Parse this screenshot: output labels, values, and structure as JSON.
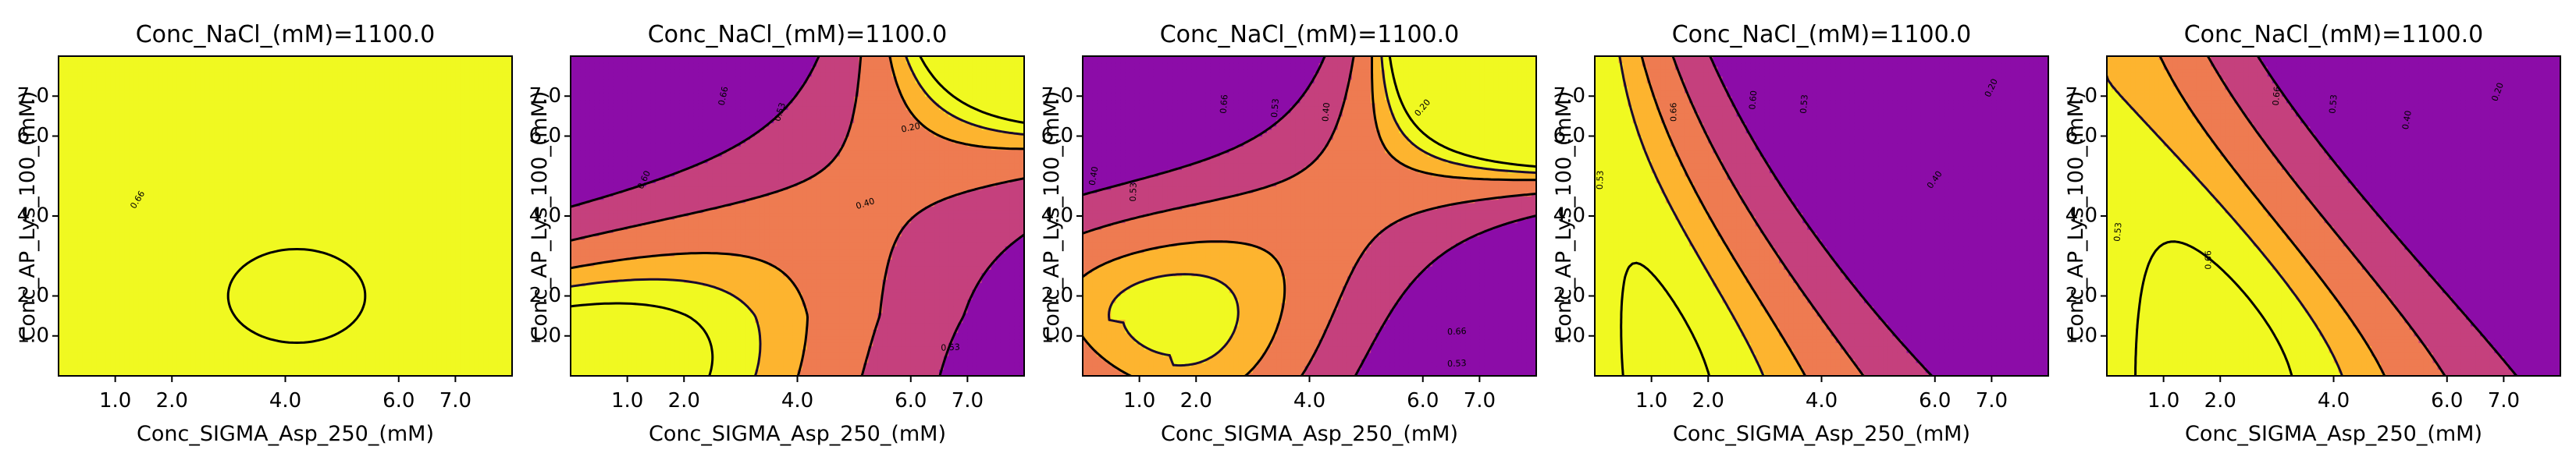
{
  "colors": {
    "level_fills": [
      "#8c0ca8",
      "#c5407d",
      "#ee7b51",
      "#fdb42f",
      "#f0f921"
    ],
    "contour_line": "#000000",
    "dashed_contour": "#1a0a2e"
  },
  "chart_data": [
    {
      "type": "contour",
      "title": "Conc_NaCl_(mM)=1100.0",
      "xlabel": "Conc_SIGMA_Asp_250_(mM)",
      "ylabel": "Conc_AP_Lys_100_(mM)",
      "xlim": [
        0.0,
        8.0
      ],
      "ylim": [
        0.0,
        8.0
      ],
      "xticks": [
        "1.0",
        "2.0",
        "4.0",
        "6.0",
        "7.0"
      ],
      "yticks": [
        "1.0",
        "2.0",
        "4.0",
        "6.0",
        "7.0"
      ],
      "levels": [
        0.2,
        0.4,
        0.53,
        0.6,
        0.66
      ],
      "contour_labels": [
        {
          "text": "0.66",
          "x": 1.4,
          "y": 4.4,
          "rot": -58
        }
      ]
    },
    {
      "type": "contour",
      "title": "Conc_NaCl_(mM)=1100.0",
      "xlabel": "Conc_SIGMA_Asp_250_(mM)",
      "ylabel": "Conc_AP_Lys_100_(mM)",
      "xlim": [
        0.0,
        8.0
      ],
      "ylim": [
        0.0,
        8.0
      ],
      "xticks": [
        "1.0",
        "2.0",
        "4.0",
        "6.0",
        "7.0"
      ],
      "yticks": [
        "1.0",
        "2.0",
        "4.0",
        "6.0",
        "7.0"
      ],
      "levels": [
        0.2,
        0.4,
        0.53,
        0.6,
        0.66
      ],
      "contour_labels": [
        {
          "text": "0.20",
          "x": 6.0,
          "y": 6.2,
          "rot": -12
        },
        {
          "text": "0.40",
          "x": 5.2,
          "y": 4.3,
          "rot": -18
        },
        {
          "text": "0.53",
          "x": 3.7,
          "y": 6.6,
          "rot": -72
        },
        {
          "text": "0.66",
          "x": 2.7,
          "y": 7.0,
          "rot": -78
        },
        {
          "text": "0.60",
          "x": 1.3,
          "y": 4.9,
          "rot": -65
        },
        {
          "text": "0.53",
          "x": 6.7,
          "y": 0.7,
          "rot": -3
        }
      ]
    },
    {
      "type": "contour",
      "title": "Conc_NaCl_(mM)=1100.0",
      "xlabel": "Conc_SIGMA_Asp_250_(mM)",
      "ylabel": "Conc_AP_Lys_100_(mM)",
      "xlim": [
        0.0,
        8.0
      ],
      "ylim": [
        0.0,
        8.0
      ],
      "xticks": [
        "1.0",
        "2.0",
        "4.0",
        "6.0",
        "7.0"
      ],
      "yticks": [
        "1.0",
        "2.0",
        "4.0",
        "6.0",
        "7.0"
      ],
      "levels": [
        0.2,
        0.4,
        0.53,
        0.6,
        0.66
      ],
      "contour_labels": [
        {
          "text": "0.20",
          "x": 6.0,
          "y": 6.7,
          "rot": -50
        },
        {
          "text": "0.40",
          "x": 0.2,
          "y": 5.0,
          "rot": -80
        },
        {
          "text": "0.53",
          "x": 0.9,
          "y": 4.6,
          "rot": -88
        },
        {
          "text": "0.66",
          "x": 2.5,
          "y": 6.8,
          "rot": -85
        },
        {
          "text": "0.53",
          "x": 3.4,
          "y": 6.7,
          "rot": -85
        },
        {
          "text": "0.40",
          "x": 4.3,
          "y": 6.6,
          "rot": -85
        },
        {
          "text": "0.66",
          "x": 6.6,
          "y": 1.1,
          "rot": -3
        },
        {
          "text": "0.53",
          "x": 6.6,
          "y": 0.3,
          "rot": -3
        }
      ]
    },
    {
      "type": "contour",
      "title": "Conc_NaCl_(mM)=1100.0",
      "xlabel": "Conc_SIGMA_Asp_250_(mM)",
      "ylabel": "Conc_AP_Lys_100_(mM)",
      "xlim": [
        0.0,
        8.0
      ],
      "ylim": [
        0.0,
        8.0
      ],
      "xticks": [
        "1.0",
        "2.0",
        "4.0",
        "6.0",
        "7.0"
      ],
      "yticks": [
        "1.0",
        "2.0",
        "4.0",
        "6.0",
        "7.0"
      ],
      "levels": [
        0.2,
        0.4,
        0.53,
        0.6,
        0.66
      ],
      "contour_labels": [
        {
          "text": "0.53",
          "x": 0.1,
          "y": 4.9,
          "rot": -88
        },
        {
          "text": "0.66",
          "x": 1.4,
          "y": 6.6,
          "rot": -90
        },
        {
          "text": "0.60",
          "x": 2.8,
          "y": 6.9,
          "rot": -85
        },
        {
          "text": "0.53",
          "x": 3.7,
          "y": 6.8,
          "rot": -85
        },
        {
          "text": "0.40",
          "x": 6.0,
          "y": 4.9,
          "rot": -55
        },
        {
          "text": "0.20",
          "x": 7.0,
          "y": 7.2,
          "rot": -65
        }
      ]
    },
    {
      "type": "contour",
      "title": "Conc_NaCl_(mM)=1100.0",
      "xlabel": "Conc_SIGMA_Asp_250_(mM)",
      "ylabel": "Conc_AP_Lys_100_(mM)",
      "xlim": [
        0.0,
        8.0
      ],
      "ylim": [
        0.0,
        8.0
      ],
      "xticks": [
        "1.0",
        "2.0",
        "4.0",
        "6.0",
        "7.0"
      ],
      "yticks": [
        "1.0",
        "2.0",
        "4.0",
        "6.0",
        "7.0"
      ],
      "levels": [
        0.2,
        0.4,
        0.53,
        0.6,
        0.66
      ],
      "contour_labels": [
        {
          "text": "0.53",
          "x": 0.2,
          "y": 3.6,
          "rot": -85
        },
        {
          "text": "0.66",
          "x": 1.8,
          "y": 2.9,
          "rot": -90
        },
        {
          "text": "0.66",
          "x": 3.0,
          "y": 7.0,
          "rot": -85
        },
        {
          "text": "0.53",
          "x": 4.0,
          "y": 6.8,
          "rot": -85
        },
        {
          "text": "0.40",
          "x": 5.3,
          "y": 6.4,
          "rot": -80
        },
        {
          "text": "0.20",
          "x": 6.9,
          "y": 7.1,
          "rot": -70
        }
      ]
    }
  ]
}
